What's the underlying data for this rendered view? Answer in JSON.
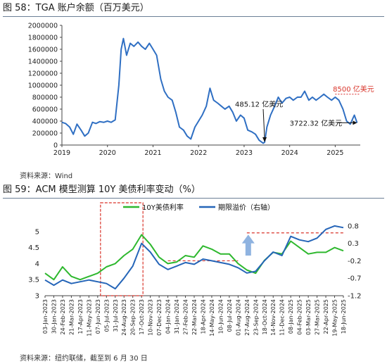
{
  "figure1": {
    "title": "图 58：TGA 账户余额（百万美元）",
    "source": "资料来源：Wind"
  },
  "figure2": {
    "title": "图 59：ACM 模型测算 10Y 美债利率变动（%）",
    "source": "资料来源：纽约联储，截至到 6 月 30 日"
  },
  "chart_data": [
    {
      "type": "line",
      "title": "TGA 账户余额（百万美元）",
      "xlabel": "",
      "ylabel": "",
      "ylim": [
        0,
        2000000
      ],
      "xlim": [
        2019.0,
        2025.55
      ],
      "yticks": [
        0,
        200000,
        400000,
        600000,
        800000,
        1000000,
        1200000,
        1400000,
        1600000,
        1800000,
        2000000
      ],
      "xticks": [
        "2019",
        "2020",
        "2021",
        "2022",
        "2023",
        "2024",
        "2025"
      ],
      "grid": false,
      "colors": {
        "line": "#2f6fc3",
        "annotation_red": "#d9352b",
        "dotted": "#e05050"
      },
      "series": [
        {
          "name": "",
          "x": [
            2019.0,
            2019.08,
            2019.17,
            2019.25,
            2019.33,
            2019.42,
            2019.5,
            2019.58,
            2019.67,
            2019.75,
            2019.83,
            2019.92,
            2020.0,
            2020.08,
            2020.17,
            2020.25,
            2020.3,
            2020.35,
            2020.42,
            2020.5,
            2020.58,
            2020.67,
            2020.75,
            2020.83,
            2020.92,
            2021.0,
            2021.08,
            2021.17,
            2021.25,
            2021.33,
            2021.42,
            2021.5,
            2021.58,
            2021.67,
            2021.75,
            2021.83,
            2021.92,
            2022.0,
            2022.08,
            2022.17,
            2022.25,
            2022.33,
            2022.42,
            2022.5,
            2022.58,
            2022.67,
            2022.75,
            2022.83,
            2022.92,
            2023.0,
            2023.08,
            2023.17,
            2023.25,
            2023.33,
            2023.42,
            2023.45,
            2023.5,
            2023.58,
            2023.67,
            2023.75,
            2023.83,
            2023.92,
            2024.0,
            2024.08,
            2024.17,
            2024.25,
            2024.33,
            2024.42,
            2024.5,
            2024.58,
            2024.67,
            2024.75,
            2024.83,
            2024.92,
            2025.0,
            2025.08,
            2025.17,
            2025.25,
            2025.33,
            2025.42,
            2025.48
          ],
          "values": [
            380000,
            360000,
            300000,
            180000,
            350000,
            250000,
            150000,
            200000,
            380000,
            360000,
            390000,
            380000,
            400000,
            380000,
            420000,
            1000000,
            1600000,
            1780000,
            1500000,
            1700000,
            1650000,
            1720000,
            1650000,
            1600000,
            1700000,
            1600000,
            1500000,
            1100000,
            900000,
            800000,
            750000,
            550000,
            300000,
            250000,
            150000,
            100000,
            300000,
            400000,
            500000,
            650000,
            950000,
            750000,
            700000,
            650000,
            600000,
            650000,
            550000,
            400000,
            500000,
            450000,
            250000,
            220000,
            180000,
            80000,
            30000,
            48512,
            300000,
            500000,
            650000,
            800000,
            700000,
            780000,
            800000,
            750000,
            800000,
            800000,
            900000,
            750000,
            800000,
            750000,
            800000,
            850000,
            800000,
            750000,
            800000,
            750000,
            600000,
            400000,
            350000,
            500000,
            372232
          ]
        }
      ],
      "annotations": [
        {
          "text": "485.12 亿美元",
          "x": 2023.45,
          "y": 48512
        },
        {
          "text": "8500 亿美元",
          "x": 2025.48,
          "y": 850000,
          "color": "#d9352b"
        },
        {
          "text": "3722.32 亿美元",
          "x": 2025.48,
          "y": 372232
        }
      ]
    },
    {
      "type": "line",
      "title": "ACM 模型测算 10Y 美债利率变动（%）",
      "xlabel": "",
      "ylabel": "",
      "ylim_left": [
        3,
        5.5
      ],
      "ylim_right": [
        -1.2,
        1.1
      ],
      "yticks_left": [
        3,
        3.5,
        4,
        4.5,
        5
      ],
      "yticks_right": [
        -1.2,
        -0.7,
        -0.2,
        0.3,
        0.8
      ],
      "legend_position": "top",
      "grid": false,
      "categories": [
        "03-Jan-2023",
        "30-Jan-2023",
        "24-Feb-2023",
        "21-Mar-2023",
        "17-Apr-2023",
        "11-May-2023",
        "07-Jun-2023",
        "05-Jul-2023",
        "31-Jul-2023",
        "24-Aug-2023",
        "20-Sep-2023",
        "17-Oct-2023",
        "10-Nov-2023",
        "07-Dec-2023",
        "04-Jan-2024",
        "31-Jan-2024",
        "27-Feb-2024",
        "22-Mar-2024",
        "18-Apr-2024",
        "14-May-2024",
        "10-Jun-2024",
        "08-Jul-2024",
        "01-Aug-2024",
        "27-Aug-2024",
        "23-Sep-2024",
        "18-Oct-2024",
        "14-Nov-2024",
        "11-Dec-2024",
        "08-Jan-2025",
        "04-Feb-2025",
        "03-Mar-2025",
        "27-Mar-2025",
        "22-Apr-2025",
        "19-May-2025",
        "18-Jun-2025"
      ],
      "series": [
        {
          "name": "10Y美债利率",
          "axis": "left",
          "color": "#2eb82e",
          "values": [
            3.7,
            3.5,
            3.9,
            3.6,
            3.5,
            3.6,
            3.7,
            3.9,
            4.0,
            4.25,
            4.45,
            4.9,
            4.6,
            4.2,
            4.0,
            4.05,
            4.25,
            4.2,
            4.55,
            4.45,
            4.3,
            4.3,
            4.0,
            3.8,
            3.7,
            4.1,
            4.35,
            4.3,
            4.7,
            4.5,
            4.3,
            4.35,
            4.35,
            4.5,
            4.4
          ]
        },
        {
          "name": "期限溢价（右轴）",
          "axis": "right",
          "color": "#2565b8",
          "values": [
            -0.75,
            -0.9,
            -0.75,
            -0.85,
            -0.8,
            -0.75,
            -0.8,
            -0.85,
            -1.0,
            -0.7,
            -0.35,
            0.3,
            0.05,
            -0.3,
            -0.45,
            -0.35,
            -0.25,
            -0.3,
            -0.15,
            -0.2,
            -0.25,
            -0.3,
            -0.4,
            -0.55,
            -0.5,
            -0.2,
            0.05,
            -0.05,
            0.5,
            0.4,
            0.35,
            0.45,
            0.7,
            0.8,
            0.75
          ]
        }
      ],
      "overlays": [
        {
          "type": "dashed-rect",
          "color": "#d9352b",
          "from": "12-Jun-2023",
          "to": "17-Oct-2023"
        },
        {
          "type": "dashed-hline",
          "color": "#d9352b",
          "axis": "right",
          "y": -0.2,
          "from": "04-Jan-2024",
          "to": "01-Aug-2024"
        },
        {
          "type": "dashed-hline",
          "color": "#d9352b",
          "axis": "right",
          "y": 0.6,
          "from": "27-Aug-2024",
          "to": "18-Jun-2025"
        },
        {
          "type": "up-arrow",
          "color": "#8fb3e0",
          "at": "27-Aug-2024"
        }
      ]
    }
  ]
}
